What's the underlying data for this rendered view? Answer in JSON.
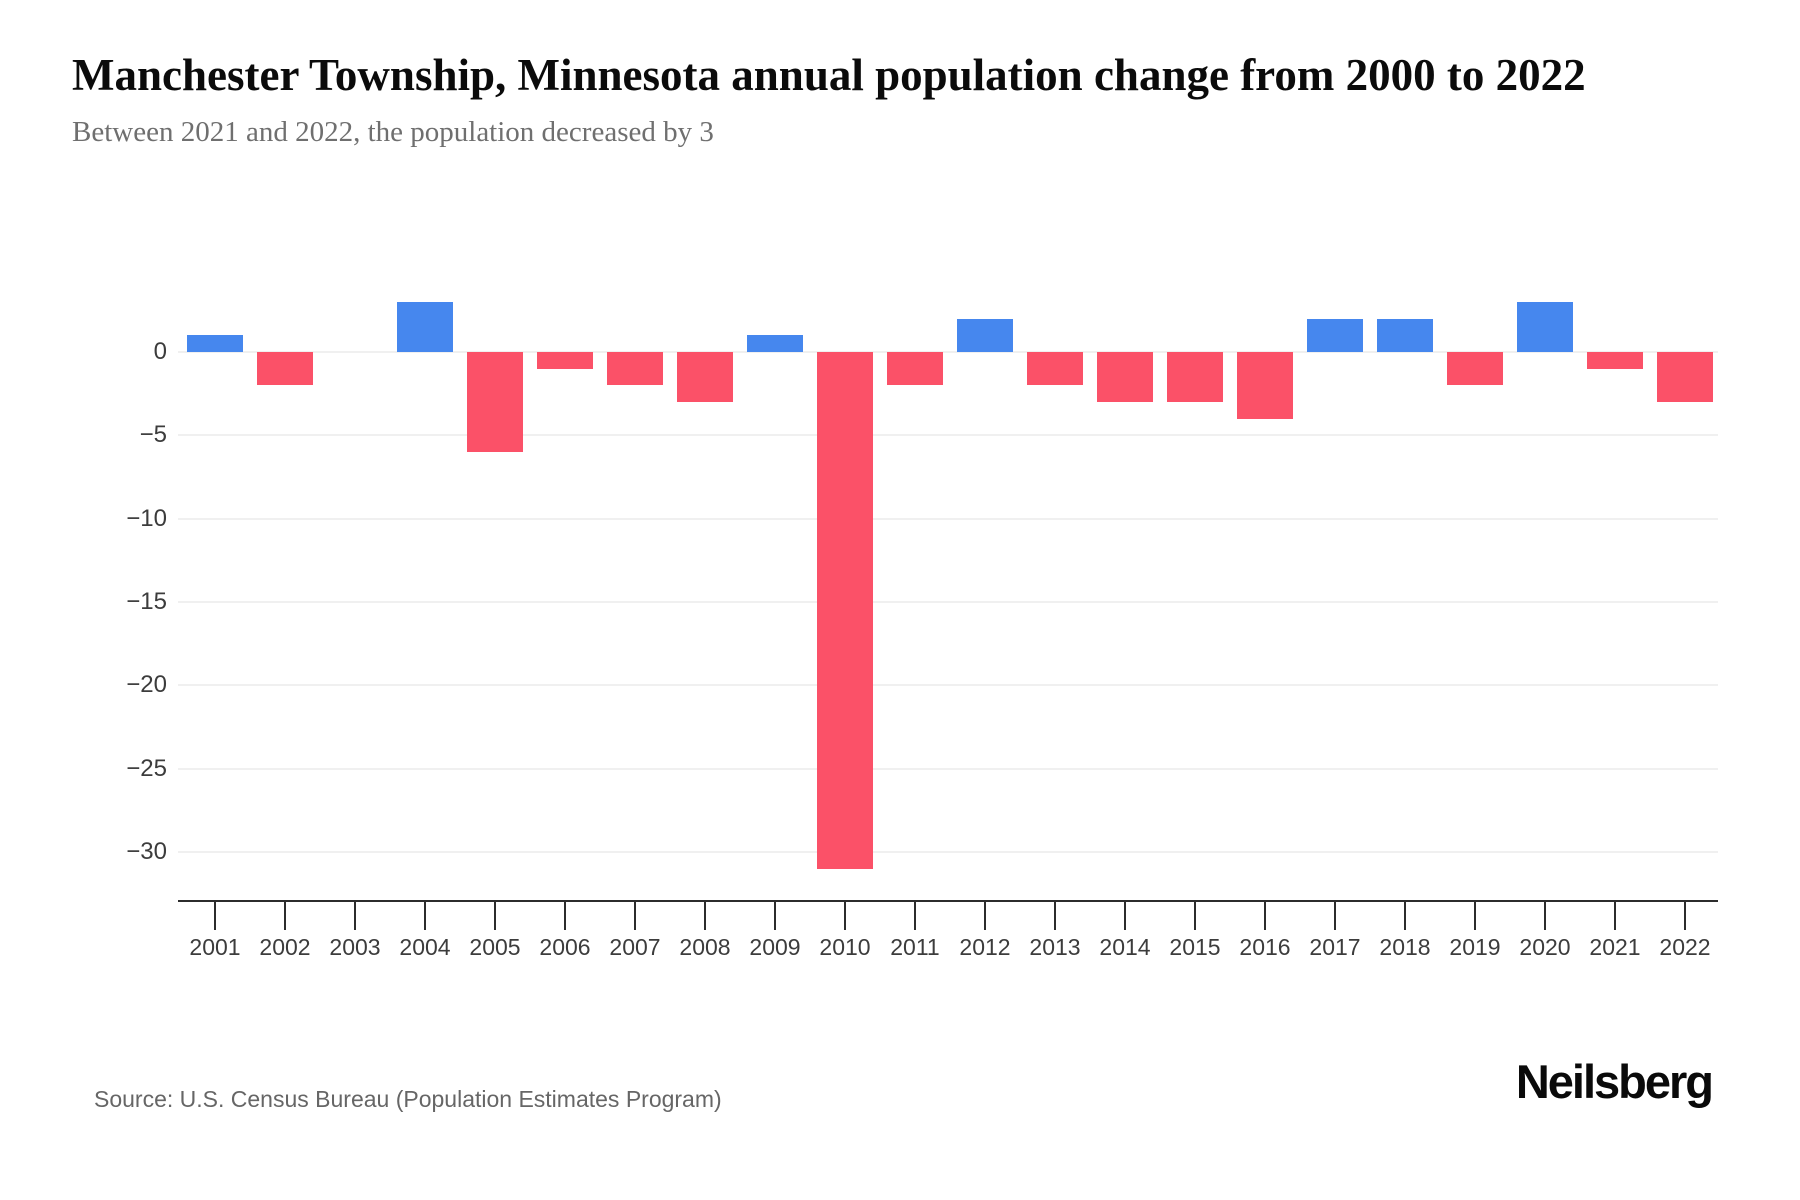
{
  "header": {
    "title": "Manchester Township, Minnesota annual population change from 2000 to 2022",
    "subtitle": "Between 2021 and 2022, the population decreased by 3"
  },
  "chart_data": {
    "type": "bar",
    "title": "Manchester Township, Minnesota annual population change from 2000 to 2022",
    "subtitle": "Between 2021 and 2022, the population decreased by 3",
    "categories": [
      "2001",
      "2002",
      "2003",
      "2004",
      "2005",
      "2006",
      "2007",
      "2008",
      "2009",
      "2010",
      "2011",
      "2012",
      "2013",
      "2014",
      "2015",
      "2016",
      "2017",
      "2018",
      "2019",
      "2020",
      "2021",
      "2022"
    ],
    "values": [
      1,
      -2,
      0,
      3,
      -6,
      -1,
      -2,
      -3,
      1,
      -31,
      -2,
      2,
      -2,
      -3,
      -3,
      -4,
      2,
      2,
      -2,
      3,
      -1,
      -3
    ],
    "xlabel": "",
    "ylabel": "",
    "ylim": [
      -33,
      5.5
    ],
    "yticks": [
      0,
      -5,
      -10,
      -15,
      -20,
      -25,
      -30
    ],
    "ytick_labels": [
      "0",
      "−5",
      "−10",
      "−15",
      "−20",
      "−25",
      "−30"
    ],
    "grid": true,
    "legend": false,
    "colors": {
      "positive": "#4687ee",
      "negative": "#fb5168"
    }
  },
  "footer": {
    "source": "Source: U.S. Census Bureau (Population Estimates Program)",
    "logo": "Neilsberg"
  }
}
